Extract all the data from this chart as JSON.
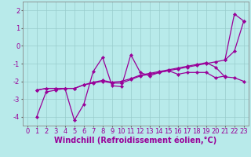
{
  "title": "",
  "xlabel": "Windchill (Refroidissement éolien,°C)",
  "ylabel": "",
  "bg_color": "#b8eaea",
  "line_color": "#990099",
  "grid_color": "#99cccc",
  "xlim": [
    -0.5,
    23.5
  ],
  "ylim": [
    -4.5,
    2.5
  ],
  "xticks": [
    0,
    1,
    2,
    3,
    4,
    5,
    6,
    7,
    8,
    9,
    10,
    11,
    12,
    13,
    14,
    15,
    16,
    17,
    18,
    19,
    20,
    21,
    22,
    23
  ],
  "yticks": [
    -4,
    -3,
    -2,
    -1,
    0,
    1,
    2
  ],
  "series1_x": [
    1,
    2,
    3,
    4,
    5,
    6,
    7,
    8,
    9,
    10,
    11,
    12,
    13,
    14,
    15,
    16,
    17,
    18,
    19,
    20,
    21
  ],
  "series1_y": [
    -4.0,
    -2.6,
    -2.5,
    -2.4,
    -4.2,
    -3.3,
    -1.45,
    -0.65,
    -2.25,
    -2.3,
    -0.5,
    -1.5,
    -1.7,
    -1.5,
    -1.4,
    -1.6,
    -1.5,
    -1.5,
    -1.5,
    -1.8,
    -1.7
  ],
  "series2_x": [
    1,
    2,
    3,
    4,
    5,
    6,
    7,
    8,
    9,
    10,
    11,
    12,
    13,
    14,
    15,
    16,
    17,
    18,
    19,
    20,
    21,
    22,
    23
  ],
  "series2_y": [
    -2.5,
    -2.4,
    -2.4,
    -2.4,
    -2.4,
    -2.2,
    -2.1,
    -2.0,
    -2.1,
    -2.1,
    -1.9,
    -1.7,
    -1.6,
    -1.5,
    -1.4,
    -1.3,
    -1.2,
    -1.1,
    -1.0,
    -0.9,
    -0.8,
    -0.3,
    1.4
  ],
  "series3_x": [
    1,
    2,
    3,
    4,
    5,
    6,
    7,
    8,
    9,
    10,
    11,
    12,
    13,
    14,
    15,
    16,
    17,
    18,
    19,
    20,
    21,
    22,
    23
  ],
  "series3_y": [
    -2.5,
    -2.4,
    -2.4,
    -2.4,
    -2.4,
    -2.2,
    -2.05,
    -1.95,
    -2.05,
    -2.0,
    -1.85,
    -1.65,
    -1.55,
    -1.45,
    -1.35,
    -1.25,
    -1.15,
    -1.05,
    -0.95,
    -1.2,
    -1.75,
    -1.8,
    -2.0
  ],
  "series4_x": [
    21,
    22,
    23
  ],
  "series4_y": [
    -0.8,
    1.8,
    1.4
  ],
  "xlabel_fontsize": 7,
  "tick_fontsize": 6,
  "linewidth": 0.9,
  "markersize": 2.2
}
